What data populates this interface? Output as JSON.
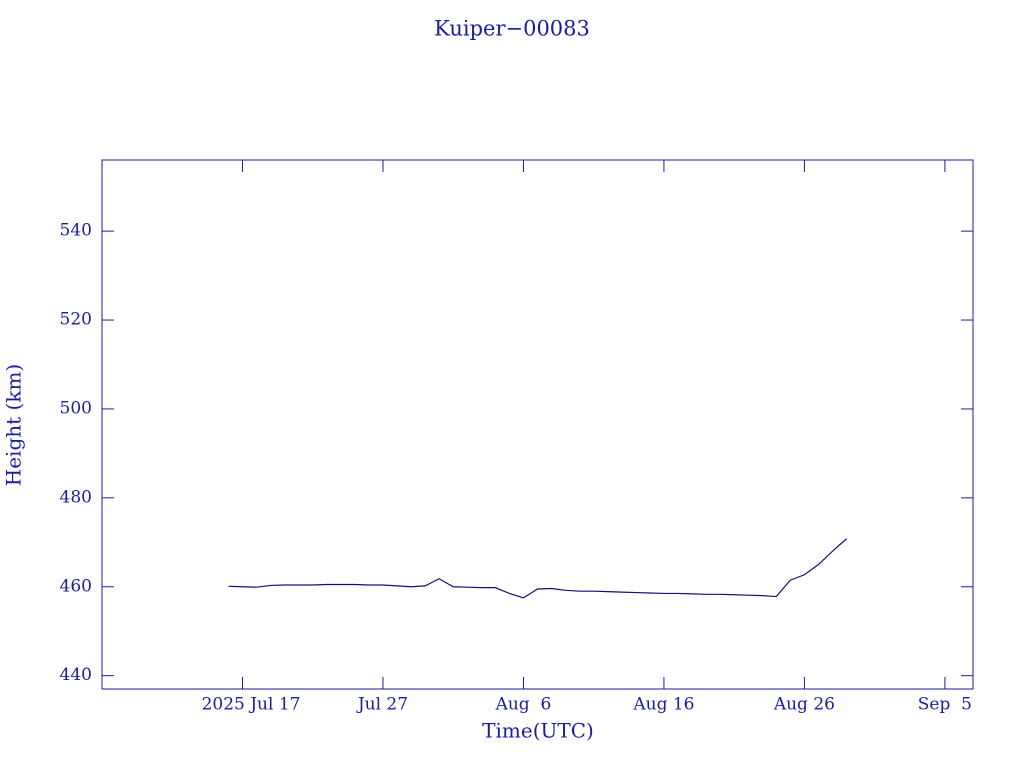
{
  "chart_data": {
    "type": "line",
    "title": "Kuiper−00083",
    "x_label": "Time(UTC)",
    "y_label": "Height (km)",
    "x": [
      "2025-07-16",
      "2025-07-17",
      "2025-07-18",
      "2025-07-19",
      "2025-07-20",
      "2025-07-21",
      "2025-07-22",
      "2025-07-23",
      "2025-07-24",
      "2025-07-25",
      "2025-07-26",
      "2025-07-27",
      "2025-07-28",
      "2025-07-29",
      "2025-07-30",
      "2025-07-31",
      "2025-08-01",
      "2025-08-02",
      "2025-08-03",
      "2025-08-04",
      "2025-08-05",
      "2025-08-06",
      "2025-08-07",
      "2025-08-08",
      "2025-08-09",
      "2025-08-10",
      "2025-08-11",
      "2025-08-12",
      "2025-08-13",
      "2025-08-14",
      "2025-08-15",
      "2025-08-16",
      "2025-08-17",
      "2025-08-18",
      "2025-08-19",
      "2025-08-20",
      "2025-08-21",
      "2025-08-22",
      "2025-08-23",
      "2025-08-24",
      "2025-08-25",
      "2025-08-26",
      "2025-08-27",
      "2025-08-28",
      "2025-08-29"
    ],
    "series": [
      {
        "name": "Height",
        "color": "#10107a",
        "values": [
          460.1,
          460.0,
          459.9,
          460.3,
          460.4,
          460.4,
          460.4,
          460.5,
          460.5,
          460.5,
          460.4,
          460.4,
          460.2,
          460.0,
          460.2,
          461.8,
          460.0,
          459.9,
          459.8,
          459.8,
          458.5,
          457.5,
          459.5,
          459.6,
          459.2,
          459.0,
          459.0,
          458.9,
          458.8,
          458.7,
          458.6,
          458.5,
          458.5,
          458.4,
          458.3,
          458.3,
          458.2,
          458.1,
          458.0,
          457.8,
          461.5,
          462.7,
          465.0,
          468.0,
          470.8
        ]
      }
    ],
    "xlim": [
      "2025-07-07",
      "2025-09-07"
    ],
    "xticks": [
      {
        "value": "2025-07-17",
        "label": "2025 Jul 17"
      },
      {
        "value": "2025-07-27",
        "label": "Jul 27"
      },
      {
        "value": "2025-08-06",
        "label": "Aug  6"
      },
      {
        "value": "2025-08-16",
        "label": "Aug 16"
      },
      {
        "value": "2025-08-26",
        "label": "Aug 26"
      },
      {
        "value": "2025-09-05",
        "label": "Sep  5"
      }
    ],
    "ylim": [
      437,
      556
    ],
    "yticks": [
      440,
      460,
      480,
      500,
      520,
      540
    ],
    "grid": false
  }
}
